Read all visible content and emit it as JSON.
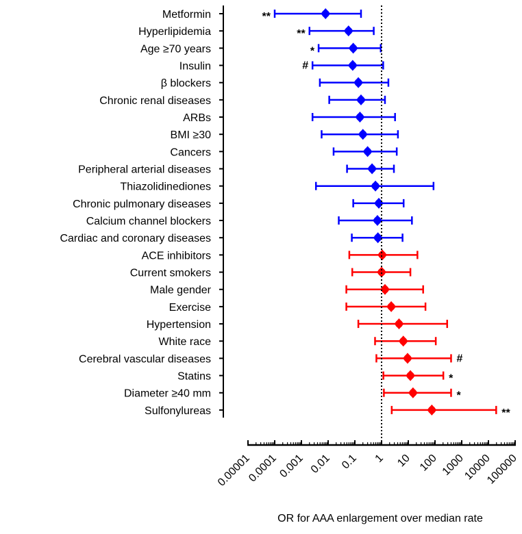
{
  "chart_data": {
    "type": "forest",
    "title": "",
    "xlabel": "OR for AAA enlargement  over median rate",
    "ylabel": "",
    "xscale": "log",
    "xlim": [
      1e-05,
      100000
    ],
    "xticks": [
      "0.00001",
      "0.0001",
      "0.001",
      "0.01",
      "0.1",
      "1",
      "10",
      "100",
      "1000",
      "10000",
      "100000"
    ],
    "xtick_values": [
      1e-05,
      0.0001,
      0.001,
      0.01,
      0.1,
      1,
      10,
      100,
      1000,
      10000,
      100000
    ],
    "reference_line": 1,
    "colors": {
      "protective": "#0000ff",
      "risk": "#ff0000",
      "annotation": "#000000"
    },
    "rows": [
      {
        "label": "Metformin",
        "or": 0.008,
        "low": 0.0001,
        "high": 0.17,
        "group": "protective",
        "mark": "**",
        "mark_side": "left"
      },
      {
        "label": "Hyperlipidemia",
        "or": 0.058,
        "low": 0.002,
        "high": 0.51,
        "group": "protective",
        "mark": "**",
        "mark_side": "left"
      },
      {
        "label": "Age ≥70 years",
        "or": 0.087,
        "low": 0.0044,
        "high": 0.93,
        "group": "protective",
        "mark": "*",
        "mark_side": "left"
      },
      {
        "label": "Insulin",
        "or": 0.083,
        "low": 0.0026,
        "high": 1.15,
        "group": "protective",
        "mark": "#",
        "mark_side": "left"
      },
      {
        "label": "β blockers",
        "or": 0.135,
        "low": 0.0049,
        "high": 1.8,
        "group": "protective",
        "mark": "",
        "mark_side": ""
      },
      {
        "label": "Chronic renal diseases",
        "or": 0.17,
        "low": 0.011,
        "high": 1.34,
        "group": "protective",
        "mark": "",
        "mark_side": ""
      },
      {
        "label": "ARBs",
        "or": 0.155,
        "low": 0.0026,
        "high": 3.2,
        "group": "protective",
        "mark": "",
        "mark_side": ""
      },
      {
        "label": "BMI ≥30",
        "or": 0.2,
        "low": 0.0057,
        "high": 4.1,
        "group": "protective",
        "mark": "",
        "mark_side": ""
      },
      {
        "label": "Cancers",
        "or": 0.3,
        "low": 0.016,
        "high": 3.7,
        "group": "protective",
        "mark": "",
        "mark_side": ""
      },
      {
        "label": "Peripheral arterial diseases",
        "or": 0.44,
        "low": 0.051,
        "high": 2.9,
        "group": "protective",
        "mark": "",
        "mark_side": ""
      },
      {
        "label": "Thiazolidinediones",
        "or": 0.59,
        "low": 0.0035,
        "high": 88,
        "group": "protective",
        "mark": "",
        "mark_side": ""
      },
      {
        "label": "Chronic pulmonary diseases",
        "or": 0.79,
        "low": 0.087,
        "high": 6.7,
        "group": "protective",
        "mark": "",
        "mark_side": ""
      },
      {
        "label": "Calcium channel blockers",
        "or": 0.7,
        "low": 0.025,
        "high": 13.7,
        "group": "protective",
        "mark": "",
        "mark_side": ""
      },
      {
        "label": "Cardiac and coronary diseases",
        "or": 0.73,
        "low": 0.077,
        "high": 6.1,
        "group": "protective",
        "mark": "",
        "mark_side": ""
      },
      {
        "label": "ACE inhibitors",
        "or": 1.06,
        "low": 0.062,
        "high": 22,
        "group": "risk",
        "mark": "",
        "mark_side": ""
      },
      {
        "label": "Current smokers",
        "or": 1.0,
        "low": 0.08,
        "high": 12,
        "group": "risk",
        "mark": "",
        "mark_side": ""
      },
      {
        "label": "Male gender",
        "or": 1.34,
        "low": 0.048,
        "high": 36,
        "group": "risk",
        "mark": "",
        "mark_side": ""
      },
      {
        "label": "Exercise",
        "or": 2.3,
        "low": 0.048,
        "high": 44,
        "group": "risk",
        "mark": "",
        "mark_side": ""
      },
      {
        "label": "Hypertension",
        "or": 4.5,
        "low": 0.135,
        "high": 285,
        "group": "risk",
        "mark": "",
        "mark_side": ""
      },
      {
        "label": "White race",
        "or": 6.5,
        "low": 0.57,
        "high": 107,
        "group": "risk",
        "mark": "",
        "mark_side": ""
      },
      {
        "label": "Cerebral vascular diseases",
        "or": 9.4,
        "low": 0.64,
        "high": 400,
        "group": "risk",
        "mark": "#",
        "mark_side": "right"
      },
      {
        "label": "Statins",
        "or": 12,
        "low": 1.17,
        "high": 205,
        "group": "risk",
        "mark": "*",
        "mark_side": "right"
      },
      {
        "label": "Diameter ≥40 mm",
        "or": 15,
        "low": 1.22,
        "high": 400,
        "group": "risk",
        "mark": "*",
        "mark_side": "right"
      },
      {
        "label": "Sulfonylureas",
        "or": 76,
        "low": 2.4,
        "high": 19500,
        "group": "risk",
        "mark": "**",
        "mark_side": "right"
      }
    ]
  }
}
